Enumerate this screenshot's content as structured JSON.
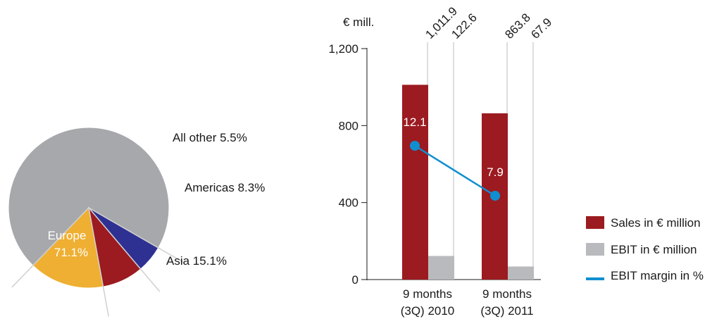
{
  "chart_data": [
    {
      "type": "pie",
      "slices": [
        {
          "label": "Europe",
          "value": 71.1,
          "display": "71.1%",
          "color": "#a7a8ab"
        },
        {
          "label": "All other",
          "value": 5.5,
          "display": "All other 5.5%",
          "color": "#2e3192"
        },
        {
          "label": "Americas",
          "value": 8.3,
          "display": "Americas 8.3%",
          "color": "#9b1b20"
        },
        {
          "label": "Asia",
          "value": 15.1,
          "display": "Asia 15.1%",
          "color": "#efaf32"
        }
      ]
    },
    {
      "type": "bar",
      "ylabel": "€ mill.",
      "ylim": [
        0,
        1200
      ],
      "yticks": [
        "0",
        "400",
        "800",
        "1,200"
      ],
      "categories": [
        {
          "line1": "9 months",
          "line2": "(3Q) 2010"
        },
        {
          "line1": "9 months",
          "line2": "(3Q) 2011"
        }
      ],
      "series": [
        {
          "name": "Sales in € million",
          "color": "#9b1b20",
          "values": [
            1011.9,
            863.8
          ],
          "labels": [
            "1,011.9",
            "863.8"
          ]
        },
        {
          "name": "EBIT in € million",
          "color": "#b9babd",
          "values": [
            122.6,
            67.9
          ],
          "labels": [
            "122.6",
            "67.9"
          ]
        }
      ],
      "line_series": {
        "name": "EBIT margin in %",
        "color": "#0f8fd0",
        "values": [
          12.1,
          7.9
        ],
        "labels": [
          "12.1",
          "7.9"
        ]
      }
    }
  ]
}
